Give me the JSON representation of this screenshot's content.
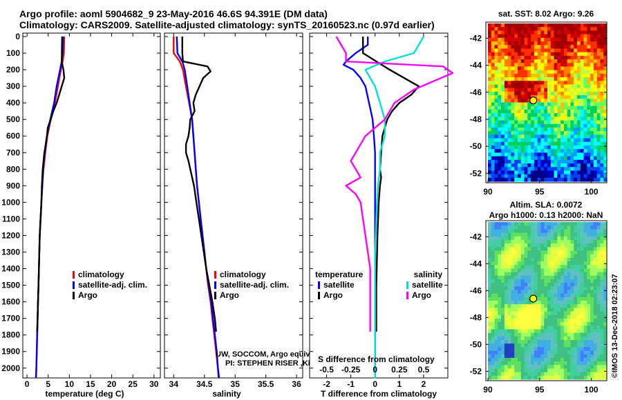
{
  "header": {
    "line1": "Argo profile: aoml 5904682_9 23-May-2016 46.6S 94.391E (DM data)",
    "line2": "Climatology: CARS2009. Satellite-adjusted climatology: synTS_20160523.nc (0.97d earlier)"
  },
  "colors": {
    "climatology": "#ff0000",
    "satellite": "#0000ff",
    "argo": "#000000",
    "sal_satellite": "#00e0e0",
    "sal_argo": "#ff00ff"
  },
  "chart_data": [
    {
      "type": "line",
      "id": "temperature",
      "xlabel": "temperature (deg C)",
      "ylabel": "",
      "xlim": [
        -1,
        31.5
      ],
      "ylim": [
        2080,
        0
      ],
      "xticks": [
        0,
        5,
        10,
        15,
        20,
        25,
        30
      ],
      "yticks": [
        0,
        100,
        200,
        300,
        400,
        500,
        600,
        700,
        800,
        900,
        1000,
        1100,
        1200,
        1300,
        1400,
        1500,
        1600,
        1700,
        1800,
        1900,
        2000
      ],
      "legend": [
        "climatology",
        "satellite-adj. clim.",
        "Argo"
      ],
      "series": [
        {
          "name": "climatology",
          "points": [
            [
              8.8,
              0
            ],
            [
              8.7,
              100
            ],
            [
              8.4,
              150
            ],
            [
              8.0,
              200
            ],
            [
              7.3,
              300
            ],
            [
              6.6,
              400
            ],
            [
              5.6,
              500
            ],
            [
              4.8,
              600
            ],
            [
              4.3,
              700
            ],
            [
              3.9,
              800
            ],
            [
              3.6,
              900
            ],
            [
              3.4,
              1000
            ],
            [
              3.2,
              1100
            ],
            [
              3.0,
              1200
            ],
            [
              2.9,
              1300
            ],
            [
              2.8,
              1400
            ],
            [
              2.7,
              1500
            ],
            [
              2.6,
              1600
            ],
            [
              2.5,
              1700
            ],
            [
              2.4,
              1800
            ],
            [
              2.3,
              1900
            ],
            [
              2.2,
              2000
            ],
            [
              2.1,
              2060
            ]
          ]
        },
        {
          "name": "satellite-adj. clim.",
          "points": [
            [
              8.5,
              0
            ],
            [
              8.4,
              100
            ],
            [
              8.2,
              150
            ],
            [
              7.8,
              200
            ],
            [
              7.0,
              300
            ],
            [
              6.4,
              400
            ],
            [
              5.5,
              500
            ],
            [
              4.7,
              600
            ],
            [
              4.2,
              700
            ],
            [
              3.8,
              800
            ],
            [
              3.6,
              900
            ],
            [
              3.4,
              1000
            ],
            [
              3.2,
              1100
            ],
            [
              3.0,
              1200
            ],
            [
              2.9,
              1300
            ],
            [
              2.8,
              1400
            ],
            [
              2.7,
              1500
            ],
            [
              2.6,
              1600
            ],
            [
              2.5,
              1700
            ],
            [
              2.4,
              1800
            ],
            [
              2.3,
              1900
            ],
            [
              2.2,
              2000
            ],
            [
              2.1,
              2060
            ]
          ]
        },
        {
          "name": "Argo",
          "points": [
            [
              8.3,
              0
            ],
            [
              8.2,
              150
            ],
            [
              8.6,
              200
            ],
            [
              8.8,
              250
            ],
            [
              8.2,
              300
            ],
            [
              7.6,
              350
            ],
            [
              7.0,
              400
            ],
            [
              6.2,
              450
            ],
            [
              5.6,
              500
            ],
            [
              4.9,
              550
            ],
            [
              4.7,
              600
            ],
            [
              4.4,
              650
            ],
            [
              4.1,
              700
            ],
            [
              3.9,
              750
            ],
            [
              3.7,
              800
            ],
            [
              3.6,
              850
            ],
            [
              3.5,
              900
            ],
            [
              3.4,
              1000
            ],
            [
              3.2,
              1100
            ],
            [
              3.0,
              1200
            ],
            [
              2.9,
              1300
            ],
            [
              2.8,
              1400
            ],
            [
              2.7,
              1500
            ],
            [
              2.6,
              1600
            ],
            [
              2.5,
              1700
            ],
            [
              2.4,
              1780
            ]
          ]
        }
      ]
    },
    {
      "type": "line",
      "id": "salinity",
      "xlabel": "salinity",
      "xlim": [
        33.85,
        36.1
      ],
      "ylim": [
        2080,
        0
      ],
      "xticks": [
        34,
        34.5,
        35,
        35.5,
        36
      ],
      "xticklabels": [
        "34",
        "34.5",
        "35",
        "35.5",
        "36"
      ],
      "legend": [
        "climatology",
        "satellite-adj. clim.",
        "Argo"
      ],
      "annotations": [
        "UW, SOCCOM, Argo equivalent",
        "PI: STEPHEN RISER ,KENNETH JOHNSON"
      ],
      "series": [
        {
          "name": "climatology",
          "points": [
            [
              34.0,
              0
            ],
            [
              34.0,
              100
            ],
            [
              34.1,
              150
            ],
            [
              34.15,
              200
            ],
            [
              34.2,
              300
            ],
            [
              34.25,
              400
            ],
            [
              34.3,
              500
            ],
            [
              34.32,
              600
            ],
            [
              34.34,
              700
            ],
            [
              34.36,
              800
            ],
            [
              34.38,
              900
            ],
            [
              34.41,
              1000
            ],
            [
              34.44,
              1100
            ],
            [
              34.47,
              1200
            ],
            [
              34.5,
              1300
            ],
            [
              34.53,
              1400
            ],
            [
              34.56,
              1500
            ],
            [
              34.6,
              1600
            ],
            [
              34.63,
              1700
            ],
            [
              34.66,
              1800
            ],
            [
              34.69,
              1900
            ],
            [
              34.72,
              2000
            ],
            [
              34.73,
              2060
            ]
          ]
        },
        {
          "name": "satellite-adj. clim.",
          "points": [
            [
              34.05,
              0
            ],
            [
              34.06,
              100
            ],
            [
              34.14,
              150
            ],
            [
              34.18,
              200
            ],
            [
              34.22,
              300
            ],
            [
              34.26,
              400
            ],
            [
              34.3,
              500
            ],
            [
              34.32,
              600
            ],
            [
              34.34,
              700
            ],
            [
              34.36,
              800
            ],
            [
              34.38,
              900
            ],
            [
              34.41,
              1000
            ],
            [
              34.44,
              1100
            ],
            [
              34.47,
              1200
            ],
            [
              34.5,
              1300
            ],
            [
              34.53,
              1400
            ],
            [
              34.57,
              1500
            ],
            [
              34.61,
              1600
            ],
            [
              34.64,
              1700
            ],
            [
              34.67,
              1800
            ],
            [
              34.7,
              1900
            ],
            [
              34.72,
              2000
            ],
            [
              34.74,
              2060
            ]
          ]
        },
        {
          "name": "Argo",
          "points": [
            [
              34.14,
              0
            ],
            [
              34.14,
              100
            ],
            [
              34.15,
              150
            ],
            [
              34.55,
              180
            ],
            [
              34.6,
              210
            ],
            [
              34.48,
              250
            ],
            [
              34.42,
              300
            ],
            [
              34.36,
              350
            ],
            [
              34.32,
              400
            ],
            [
              34.34,
              450
            ],
            [
              34.27,
              500
            ],
            [
              34.26,
              550
            ],
            [
              34.24,
              600
            ],
            [
              34.2,
              650
            ],
            [
              34.2,
              700
            ],
            [
              34.24,
              750
            ],
            [
              34.27,
              800
            ],
            [
              34.3,
              850
            ],
            [
              34.33,
              900
            ],
            [
              34.37,
              1000
            ],
            [
              34.41,
              1100
            ],
            [
              34.45,
              1200
            ],
            [
              34.49,
              1300
            ],
            [
              34.53,
              1400
            ],
            [
              34.58,
              1500
            ],
            [
              34.63,
              1600
            ],
            [
              34.67,
              1700
            ],
            [
              34.69,
              1780
            ]
          ]
        }
      ]
    },
    {
      "type": "line",
      "id": "difference",
      "xlabel": "T difference from climatology",
      "title_inner": "S difference from climatology",
      "xlim": [
        -2.7,
        3.0
      ],
      "ylim": [
        2080,
        0
      ],
      "xticks": [
        -2,
        -1,
        0,
        1,
        2
      ],
      "xticks_top": [
        -0.5,
        -0.25,
        0,
        0.25,
        0.5
      ],
      "xticklabels_top": [
        "-0.5",
        "-0.25",
        "0",
        "0.25",
        "0.5"
      ],
      "legend_left": {
        "title": "temperature",
        "items": [
          "satellite",
          "Argo"
        ]
      },
      "legend_right": {
        "title": "salinity",
        "items": [
          "satellite",
          "Argo"
        ]
      },
      "series": [
        {
          "name": "T satellite",
          "points": [
            [
              -0.3,
              0
            ],
            [
              -0.3,
              50
            ],
            [
              -0.8,
              100
            ],
            [
              -1.2,
              150
            ],
            [
              -1.3,
              170
            ],
            [
              -0.9,
              200
            ],
            [
              -0.6,
              250
            ],
            [
              -0.4,
              300
            ],
            [
              -0.25,
              400
            ],
            [
              -0.1,
              500
            ],
            [
              -0.05,
              600
            ],
            [
              0,
              700
            ],
            [
              0,
              900
            ],
            [
              0,
              1200
            ],
            [
              0,
              1500
            ],
            [
              0,
              2060
            ]
          ]
        },
        {
          "name": "T Argo",
          "points": [
            [
              -0.5,
              0
            ],
            [
              -0.5,
              100
            ],
            [
              0.6,
              200
            ],
            [
              1.2,
              250
            ],
            [
              1.8,
              300
            ],
            [
              1.5,
              350
            ],
            [
              1.0,
              400
            ],
            [
              0.7,
              450
            ],
            [
              0.5,
              500
            ],
            [
              0.4,
              550
            ],
            [
              0.3,
              600
            ],
            [
              0.25,
              700
            ],
            [
              0.2,
              800
            ],
            [
              0.25,
              850
            ],
            [
              0.2,
              900
            ],
            [
              0.15,
              1000
            ],
            [
              0.1,
              1200
            ],
            [
              0.05,
              1500
            ],
            [
              0.05,
              1780
            ]
          ]
        },
        {
          "name": "S satellite",
          "points": [
            [
              0.5,
              0
            ],
            [
              0.4,
              100
            ],
            [
              0.1,
              150
            ],
            [
              -0.1,
              200
            ],
            [
              -0.05,
              250
            ],
            [
              0.0,
              300
            ],
            [
              0.05,
              400
            ],
            [
              0.1,
              500
            ],
            [
              0.1,
              600
            ],
            [
              0.05,
              700
            ],
            [
              0.05,
              800
            ],
            [
              0.03,
              900
            ],
            [
              0.02,
              1000
            ],
            [
              0,
              1300
            ],
            [
              0,
              2060
            ]
          ]
        },
        {
          "name": "S Argo",
          "points": [
            [
              -0.4,
              0
            ],
            [
              -0.3,
              100
            ],
            [
              -0.3,
              150
            ],
            [
              0.7,
              180
            ],
            [
              0.8,
              220
            ],
            [
              0.6,
              270
            ],
            [
              0.4,
              320
            ],
            [
              0.2,
              400
            ],
            [
              0.1,
              500
            ],
            [
              -0.1,
              600
            ],
            [
              -0.2,
              700
            ],
            [
              -0.25,
              750
            ],
            [
              -0.2,
              800
            ],
            [
              -0.15,
              850
            ],
            [
              -0.3,
              900
            ],
            [
              -0.2,
              950
            ],
            [
              -0.15,
              1000
            ],
            [
              -0.1,
              1200
            ],
            [
              -0.05,
              1400
            ],
            [
              -0.05,
              1780
            ]
          ]
        }
      ]
    },
    {
      "type": "heatmap",
      "id": "sst_map",
      "title": "sat. SST: 8.02 Argo: 9.26",
      "xlim": [
        89.8,
        101.5
      ],
      "ylim": [
        -52.7,
        -40.8
      ],
      "xticks": [
        90,
        95,
        100
      ],
      "yticks": [
        -42,
        -44,
        -46,
        -48,
        -50,
        -52
      ],
      "marker": {
        "lon": 94.391,
        "lat": -46.6
      }
    },
    {
      "type": "heatmap",
      "id": "sla_map",
      "title": "Altim. SLA: 0.0072",
      "subtitle": "Argo h1000: 0.13 h2000: NaN",
      "xlim": [
        89.8,
        101.5
      ],
      "ylim": [
        -52.7,
        -40.8
      ],
      "xticks": [
        90,
        95,
        100
      ],
      "yticks": [
        -42,
        -44,
        -46,
        -48,
        -50,
        -52
      ],
      "marker": {
        "lon": 94.391,
        "lat": -46.6
      }
    }
  ],
  "footer": {
    "stamp": "©IMOS 13-Dec-2018 02:23:07"
  }
}
